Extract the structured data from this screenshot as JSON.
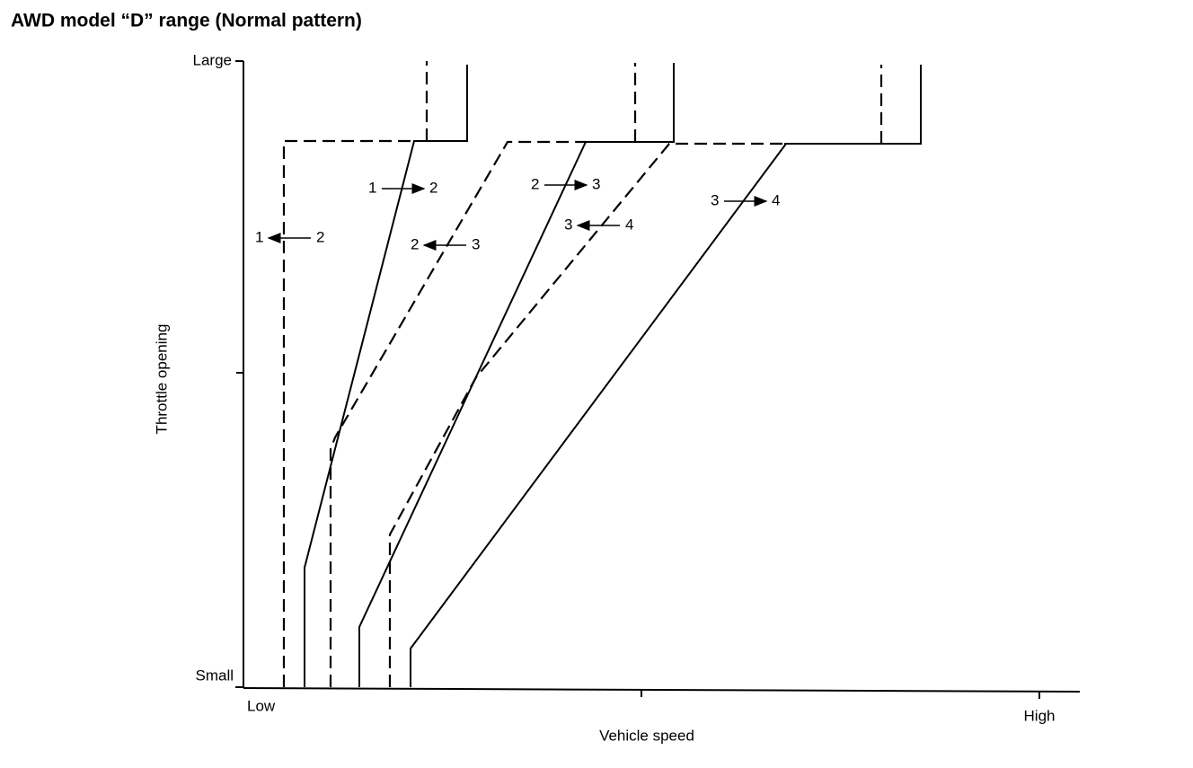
{
  "title": "AWD model “D” range (Normal pattern)",
  "y_axis": {
    "label": "Throttle opening",
    "ticks": [
      "Large",
      "Small"
    ]
  },
  "x_axis": {
    "label": "Vehicle speed",
    "ticks": [
      "Low",
      "High"
    ]
  },
  "shift_labels": [
    [
      "1",
      "2"
    ],
    [
      "1",
      "2"
    ],
    [
      "2",
      "3"
    ],
    [
      "2",
      "3"
    ],
    [
      "3",
      "4"
    ],
    [
      "3",
      "4"
    ]
  ]
}
